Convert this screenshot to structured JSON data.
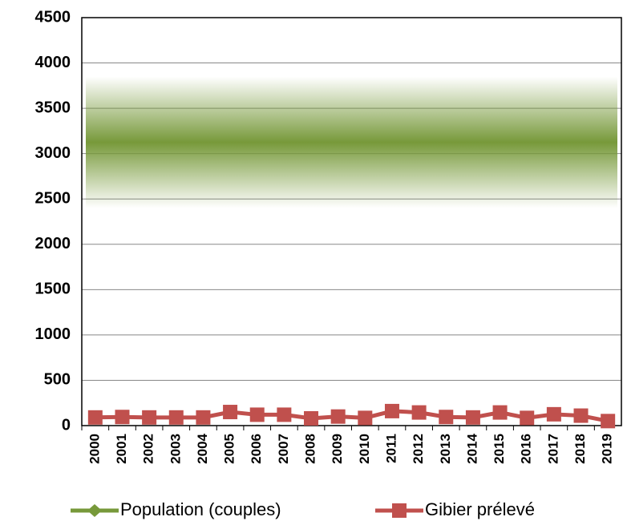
{
  "chart_data": {
    "type": "line",
    "categories": [
      "2000",
      "2001",
      "2002",
      "2003",
      "2004",
      "2005",
      "2006",
      "2007",
      "2008",
      "2009",
      "2010",
      "2011",
      "2012",
      "2013",
      "2014",
      "2015",
      "2016",
      "2017",
      "2018",
      "2019"
    ],
    "series": [
      {
        "name": "Population (couples)",
        "color": "#77993a",
        "low": 2400,
        "high": 3850
      },
      {
        "name": "Gibier prélevé",
        "color": "#c0504d",
        "values": [
          90,
          95,
          90,
          90,
          90,
          150,
          120,
          120,
          80,
          100,
          85,
          160,
          145,
          95,
          90,
          145,
          85,
          125,
          110,
          50
        ]
      }
    ],
    "ylim": [
      0,
      4500
    ],
    "yticks": [
      0,
      500,
      1000,
      1500,
      2000,
      2500,
      3000,
      3500,
      4000,
      4500
    ],
    "grid": true
  }
}
